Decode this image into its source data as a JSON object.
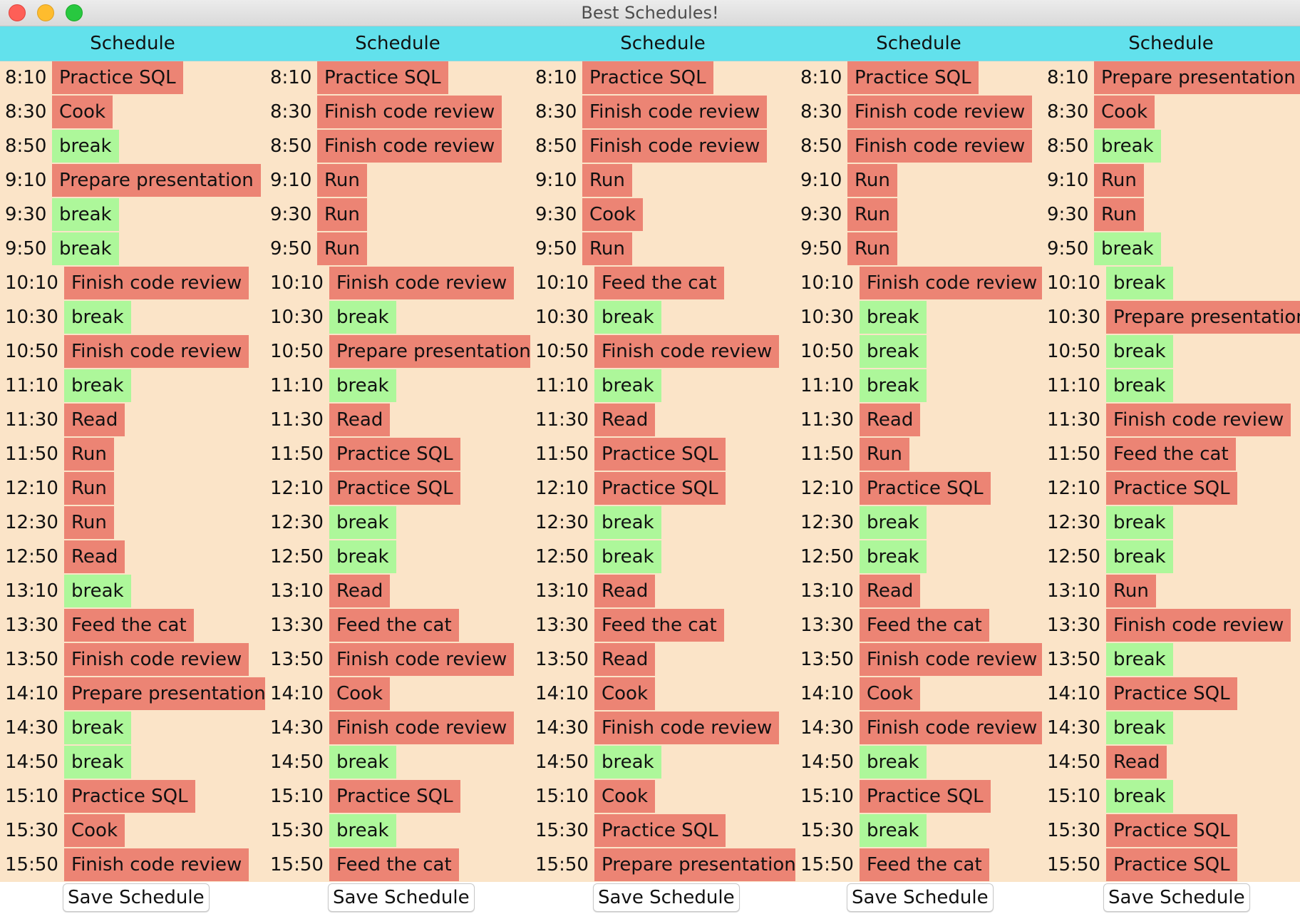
{
  "window": {
    "title": "Best Schedules!"
  },
  "schedules": [
    {
      "header": "Schedule",
      "save_label": "Save Schedule",
      "slots": [
        {
          "time": "8:10",
          "task": "Practice SQL",
          "break": false
        },
        {
          "time": "8:30",
          "task": "Cook",
          "break": false
        },
        {
          "time": "8:50",
          "task": "break",
          "break": true
        },
        {
          "time": "9:10",
          "task": "Prepare presentation",
          "break": false
        },
        {
          "time": "9:30",
          "task": "break",
          "break": true
        },
        {
          "time": "9:50",
          "task": "break",
          "break": true
        },
        {
          "time": "10:10",
          "task": "Finish code review",
          "break": false
        },
        {
          "time": "10:30",
          "task": "break",
          "break": true
        },
        {
          "time": "10:50",
          "task": "Finish code review",
          "break": false
        },
        {
          "time": "11:10",
          "task": "break",
          "break": true
        },
        {
          "time": "11:30",
          "task": "Read",
          "break": false
        },
        {
          "time": "11:50",
          "task": "Run",
          "break": false
        },
        {
          "time": "12:10",
          "task": "Run",
          "break": false
        },
        {
          "time": "12:30",
          "task": "Run",
          "break": false
        },
        {
          "time": "12:50",
          "task": "Read",
          "break": false
        },
        {
          "time": "13:10",
          "task": "break",
          "break": true
        },
        {
          "time": "13:30",
          "task": "Feed the cat",
          "break": false
        },
        {
          "time": "13:50",
          "task": "Finish code review",
          "break": false
        },
        {
          "time": "14:10",
          "task": "Prepare presentation",
          "break": false
        },
        {
          "time": "14:30",
          "task": "break",
          "break": true
        },
        {
          "time": "14:50",
          "task": "break",
          "break": true
        },
        {
          "time": "15:10",
          "task": "Practice SQL",
          "break": false
        },
        {
          "time": "15:30",
          "task": "Cook",
          "break": false
        },
        {
          "time": "15:50",
          "task": "Finish code review",
          "break": false
        }
      ]
    },
    {
      "header": "Schedule",
      "save_label": "Save Schedule",
      "slots": [
        {
          "time": "8:10",
          "task": "Practice SQL",
          "break": false
        },
        {
          "time": "8:30",
          "task": "Finish code review",
          "break": false
        },
        {
          "time": "8:50",
          "task": "Finish code review",
          "break": false
        },
        {
          "time": "9:10",
          "task": "Run",
          "break": false
        },
        {
          "time": "9:30",
          "task": "Run",
          "break": false
        },
        {
          "time": "9:50",
          "task": "Run",
          "break": false
        },
        {
          "time": "10:10",
          "task": "Finish code review",
          "break": false
        },
        {
          "time": "10:30",
          "task": "break",
          "break": true
        },
        {
          "time": "10:50",
          "task": "Prepare presentation",
          "break": false
        },
        {
          "time": "11:10",
          "task": "break",
          "break": true
        },
        {
          "time": "11:30",
          "task": "Read",
          "break": false
        },
        {
          "time": "11:50",
          "task": "Practice SQL",
          "break": false
        },
        {
          "time": "12:10",
          "task": "Practice SQL",
          "break": false
        },
        {
          "time": "12:30",
          "task": "break",
          "break": true
        },
        {
          "time": "12:50",
          "task": "break",
          "break": true
        },
        {
          "time": "13:10",
          "task": "Read",
          "break": false
        },
        {
          "time": "13:30",
          "task": "Feed the cat",
          "break": false
        },
        {
          "time": "13:50",
          "task": "Finish code review",
          "break": false
        },
        {
          "time": "14:10",
          "task": "Cook",
          "break": false
        },
        {
          "time": "14:30",
          "task": "Finish code review",
          "break": false
        },
        {
          "time": "14:50",
          "task": "break",
          "break": true
        },
        {
          "time": "15:10",
          "task": "Practice SQL",
          "break": false
        },
        {
          "time": "15:30",
          "task": "break",
          "break": true
        },
        {
          "time": "15:50",
          "task": "Feed the cat",
          "break": false
        }
      ]
    },
    {
      "header": "Schedule",
      "save_label": "Save Schedule",
      "slots": [
        {
          "time": "8:10",
          "task": "Practice SQL",
          "break": false
        },
        {
          "time": "8:30",
          "task": "Finish code review",
          "break": false
        },
        {
          "time": "8:50",
          "task": "Finish code review",
          "break": false
        },
        {
          "time": "9:10",
          "task": "Run",
          "break": false
        },
        {
          "time": "9:30",
          "task": "Cook",
          "break": false
        },
        {
          "time": "9:50",
          "task": "Run",
          "break": false
        },
        {
          "time": "10:10",
          "task": "Feed the cat",
          "break": false
        },
        {
          "time": "10:30",
          "task": "break",
          "break": true
        },
        {
          "time": "10:50",
          "task": "Finish code review",
          "break": false
        },
        {
          "time": "11:10",
          "task": "break",
          "break": true
        },
        {
          "time": "11:30",
          "task": "Read",
          "break": false
        },
        {
          "time": "11:50",
          "task": "Practice SQL",
          "break": false
        },
        {
          "time": "12:10",
          "task": "Practice SQL",
          "break": false
        },
        {
          "time": "12:30",
          "task": "break",
          "break": true
        },
        {
          "time": "12:50",
          "task": "break",
          "break": true
        },
        {
          "time": "13:10",
          "task": "Read",
          "break": false
        },
        {
          "time": "13:30",
          "task": "Feed the cat",
          "break": false
        },
        {
          "time": "13:50",
          "task": "Read",
          "break": false
        },
        {
          "time": "14:10",
          "task": "Cook",
          "break": false
        },
        {
          "time": "14:30",
          "task": "Finish code review",
          "break": false
        },
        {
          "time": "14:50",
          "task": "break",
          "break": true
        },
        {
          "time": "15:10",
          "task": "Cook",
          "break": false
        },
        {
          "time": "15:30",
          "task": "Practice SQL",
          "break": false
        },
        {
          "time": "15:50",
          "task": "Prepare presentation",
          "break": false
        }
      ]
    },
    {
      "header": "Schedule",
      "save_label": "Save Schedule",
      "slots": [
        {
          "time": "8:10",
          "task": "Practice SQL",
          "break": false
        },
        {
          "time": "8:30",
          "task": "Finish code review",
          "break": false
        },
        {
          "time": "8:50",
          "task": "Finish code review",
          "break": false
        },
        {
          "time": "9:10",
          "task": "Run",
          "break": false
        },
        {
          "time": "9:30",
          "task": "Run",
          "break": false
        },
        {
          "time": "9:50",
          "task": "Run",
          "break": false
        },
        {
          "time": "10:10",
          "task": "Finish code review",
          "break": false
        },
        {
          "time": "10:30",
          "task": "break",
          "break": true
        },
        {
          "time": "10:50",
          "task": "break",
          "break": true
        },
        {
          "time": "11:10",
          "task": "break",
          "break": true
        },
        {
          "time": "11:30",
          "task": "Read",
          "break": false
        },
        {
          "time": "11:50",
          "task": "Run",
          "break": false
        },
        {
          "time": "12:10",
          "task": "Practice SQL",
          "break": false
        },
        {
          "time": "12:30",
          "task": "break",
          "break": true
        },
        {
          "time": "12:50",
          "task": "break",
          "break": true
        },
        {
          "time": "13:10",
          "task": "Read",
          "break": false
        },
        {
          "time": "13:30",
          "task": "Feed the cat",
          "break": false
        },
        {
          "time": "13:50",
          "task": "Finish code review",
          "break": false
        },
        {
          "time": "14:10",
          "task": "Cook",
          "break": false
        },
        {
          "time": "14:30",
          "task": "Finish code review",
          "break": false
        },
        {
          "time": "14:50",
          "task": "break",
          "break": true
        },
        {
          "time": "15:10",
          "task": "Practice SQL",
          "break": false
        },
        {
          "time": "15:30",
          "task": "break",
          "break": true
        },
        {
          "time": "15:50",
          "task": "Feed the cat",
          "break": false
        }
      ]
    },
    {
      "header": "Schedule",
      "save_label": "Save Schedule",
      "slots": [
        {
          "time": "8:10",
          "task": "Prepare presentation",
          "break": false
        },
        {
          "time": "8:30",
          "task": "Cook",
          "break": false
        },
        {
          "time": "8:50",
          "task": "break",
          "break": true
        },
        {
          "time": "9:10",
          "task": "Run",
          "break": false
        },
        {
          "time": "9:30",
          "task": "Run",
          "break": false
        },
        {
          "time": "9:50",
          "task": "break",
          "break": true
        },
        {
          "time": "10:10",
          "task": "break",
          "break": true
        },
        {
          "time": "10:30",
          "task": "Prepare presentation",
          "break": false
        },
        {
          "time": "10:50",
          "task": "break",
          "break": true
        },
        {
          "time": "11:10",
          "task": "break",
          "break": true
        },
        {
          "time": "11:30",
          "task": "Finish code review",
          "break": false
        },
        {
          "time": "11:50",
          "task": "Feed the cat",
          "break": false
        },
        {
          "time": "12:10",
          "task": "Practice SQL",
          "break": false
        },
        {
          "time": "12:30",
          "task": "break",
          "break": true
        },
        {
          "time": "12:50",
          "task": "break",
          "break": true
        },
        {
          "time": "13:10",
          "task": "Run",
          "break": false
        },
        {
          "time": "13:30",
          "task": "Finish code review",
          "break": false
        },
        {
          "time": "13:50",
          "task": "break",
          "break": true
        },
        {
          "time": "14:10",
          "task": "Practice SQL",
          "break": false
        },
        {
          "time": "14:30",
          "task": "break",
          "break": true
        },
        {
          "time": "14:50",
          "task": "Read",
          "break": false
        },
        {
          "time": "15:10",
          "task": "break",
          "break": true
        },
        {
          "time": "15:30",
          "task": "Practice SQL",
          "break": false
        },
        {
          "time": "15:50",
          "task": "Practice SQL",
          "break": false
        }
      ]
    }
  ],
  "colors": {
    "header_bg": "#62e1ec",
    "panel_bg": "#fbe4c8",
    "task_bg": "#ec8474",
    "break_bg": "#adf79a"
  }
}
